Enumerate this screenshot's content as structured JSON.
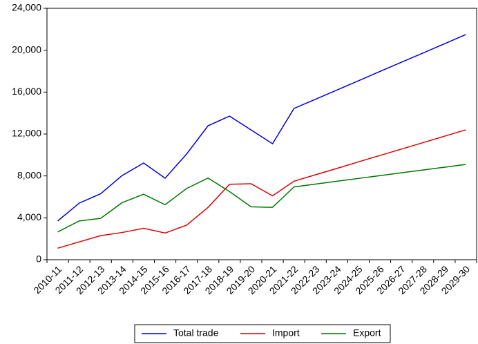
{
  "chart_data": {
    "type": "line",
    "categories": [
      "2010-11",
      "2011-12",
      "2012-13",
      "2013-14",
      "2014-15",
      "2015-16",
      "2016-17",
      "2017-18",
      "2018-19",
      "2019-20",
      "2020-21",
      "2021-22",
      "2022-23",
      "2023-24",
      "2024-25",
      "2025-26",
      "2026-27",
      "2027-28",
      "2028-29",
      "2029-30"
    ],
    "series": [
      {
        "name": "Total trade",
        "color": "#0000dd",
        "values": [
          3700,
          5400,
          6300,
          8040,
          9230,
          7780,
          10090,
          12790,
          13710,
          12390,
          11070,
          14440,
          15320,
          16200,
          17080,
          17970,
          18850,
          19730,
          20610,
          21500
        ]
      },
      {
        "name": "Import",
        "color": "#dd0000",
        "values": [
          1100,
          1700,
          2300,
          2600,
          3000,
          2550,
          3300,
          5000,
          7200,
          7250,
          6100,
          7500,
          8110,
          8720,
          9340,
          9950,
          10560,
          11170,
          11790,
          12400
        ]
      },
      {
        "name": "Export",
        "color": "#007700",
        "values": [
          2650,
          3700,
          3950,
          5450,
          6250,
          5250,
          6800,
          7800,
          6500,
          5050,
          5000,
          6950,
          7220,
          7490,
          7760,
          8030,
          8300,
          8560,
          8830,
          9100
        ]
      }
    ],
    "ylim": [
      0,
      24000
    ],
    "yticks": [
      0,
      {
        "value": 4000,
        "label": "4,000"
      },
      {
        "value": 8000,
        "label": "8,000"
      },
      {
        "value": 12000,
        "label": "12,000"
      },
      {
        "value": 16000,
        "label": "16,000"
      },
      {
        "value": 20000,
        "label": "20,000"
      },
      {
        "value": 24000,
        "label": "24,000"
      }
    ],
    "grid": false,
    "legend": "bottom"
  }
}
